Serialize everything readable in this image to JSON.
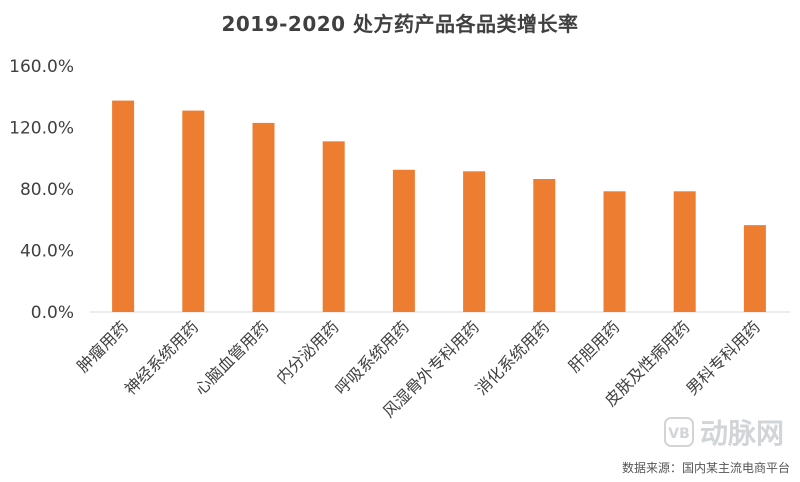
{
  "chart_data": {
    "type": "bar",
    "title": "2019-2020 处方药产品各品类增长率",
    "categories": [
      "肿瘤用药",
      "神经系统用药",
      "心脑血管用药",
      "内分泌用药",
      "呼吸系统用药",
      "风湿骨外专科用药",
      "消化系统用药",
      "肝胆用药",
      "皮肤及性病用药",
      "男科专科用药"
    ],
    "values": [
      137.5,
      131.0,
      123.0,
      111.0,
      92.5,
      91.5,
      86.5,
      78.5,
      78.5,
      56.5
    ],
    "ylim": [
      0,
      160
    ],
    "yticks": [
      0,
      40,
      80,
      120,
      160
    ],
    "ytick_labels": [
      "0.0%",
      "40.0%",
      "80.0%",
      "120.0%",
      "160.0%"
    ],
    "xlabel": "",
    "ylabel": "",
    "grid": false,
    "bar_color": "#ED7D31"
  },
  "source_text": "数据来源：国内某主流电商平台",
  "watermark": {
    "text": "动脉网",
    "icon": "vb-logo-icon"
  }
}
